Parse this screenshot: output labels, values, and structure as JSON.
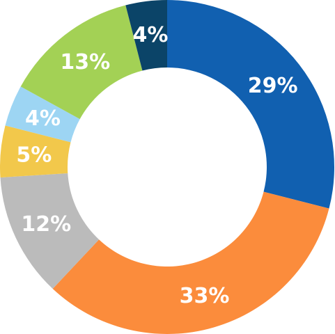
{
  "chart_data": {
    "type": "donut",
    "values": [
      29,
      33,
      12,
      5,
      4,
      13,
      4
    ],
    "value_labels": [
      "29%",
      "33%",
      "12%",
      "5%",
      "4%",
      "13%",
      "4%"
    ],
    "colors": [
      "#1160b0",
      "#fb8c3c",
      "#bbbbbb",
      "#f2c84b",
      "#9dd5f3",
      "#a3d155",
      "#0b4468"
    ]
  }
}
